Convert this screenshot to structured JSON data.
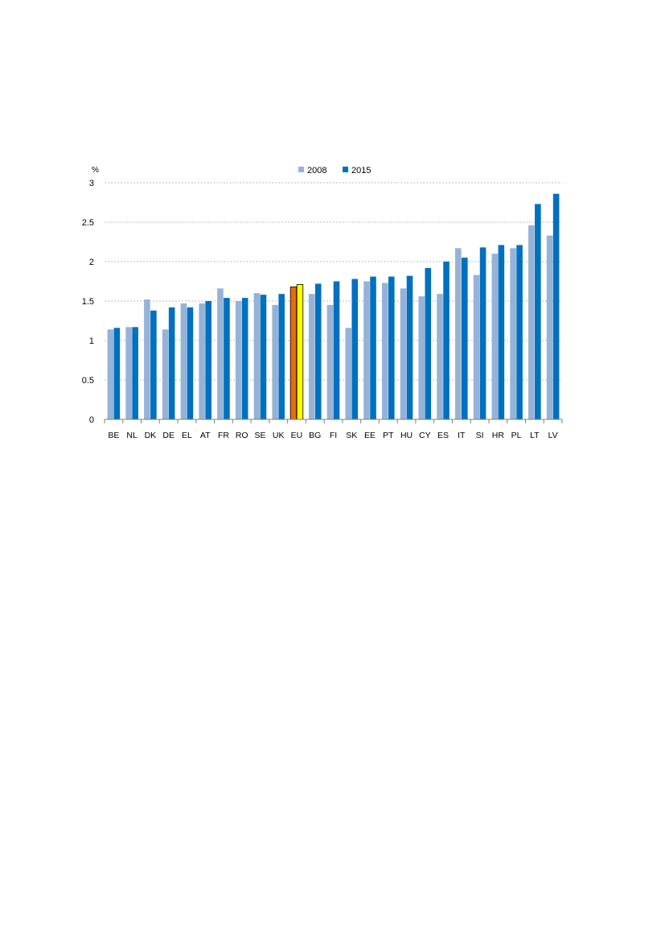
{
  "chart_data": {
    "type": "bar",
    "ylabel": "%",
    "ylim": [
      0,
      3
    ],
    "yticks": [
      "0",
      "0.5",
      "1",
      "1.5",
      "2",
      "2.5",
      "3"
    ],
    "grid": true,
    "legend_position": "top-center",
    "categories": [
      "BE",
      "NL",
      "DK",
      "DE",
      "EL",
      "AT",
      "FR",
      "RO",
      "SE",
      "UK",
      "EU",
      "BG",
      "FI",
      "SK",
      "EE",
      "PT",
      "HU",
      "CY",
      "ES",
      "IT",
      "SI",
      "HR",
      "PL",
      "LT",
      "LV"
    ],
    "series": [
      {
        "name": "2008",
        "values": [
          1.14,
          1.17,
          1.52,
          1.14,
          1.47,
          1.47,
          1.66,
          1.5,
          1.6,
          1.45,
          1.68,
          1.59,
          1.45,
          1.16,
          1.75,
          1.73,
          1.66,
          1.56,
          1.59,
          2.17,
          1.83,
          2.1,
          2.17,
          2.46,
          2.33
        ]
      },
      {
        "name": "2015",
        "values": [
          1.16,
          1.17,
          1.38,
          1.42,
          1.42,
          1.5,
          1.54,
          1.54,
          1.58,
          1.59,
          1.71,
          1.72,
          1.75,
          1.78,
          1.81,
          1.81,
          1.82,
          1.92,
          2.0,
          2.05,
          2.18,
          2.21,
          2.21,
          2.73,
          2.86
        ]
      }
    ],
    "colors": {
      "series_2008": "#95B3D7",
      "series_2015": "#0070C0",
      "highlight_2008": "#E46C0A",
      "highlight_2015": "#FFFF00",
      "highlight_outline": "#000000",
      "gridline": "#A6A6A6",
      "axis": "#808080"
    },
    "highlight_category": "EU"
  }
}
